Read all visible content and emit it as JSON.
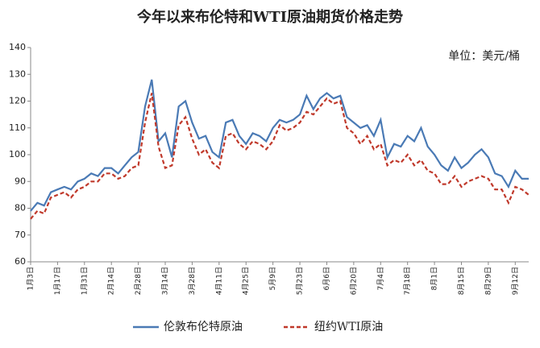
{
  "chart_data": {
    "type": "line",
    "title": "今年以来布伦特和WTI原油期货价格走势",
    "annotation": "单位：美元/桶",
    "categories": [
      "1月3日",
      null,
      null,
      null,
      "1月17日",
      null,
      null,
      null,
      "1月31日",
      null,
      null,
      null,
      "2月14日",
      null,
      null,
      null,
      "2月28日",
      null,
      null,
      null,
      "3月14日",
      null,
      null,
      null,
      "3月28日",
      null,
      null,
      null,
      "4月11日",
      null,
      null,
      null,
      "4月25日",
      null,
      null,
      null,
      "5月9日",
      null,
      null,
      null,
      "5月23日",
      null,
      null,
      null,
      "6月6日",
      null,
      null,
      null,
      "6月20日",
      null,
      null,
      null,
      "7月4日",
      null,
      null,
      null,
      "7月18日",
      null,
      null,
      null,
      "8月1日",
      null,
      null,
      null,
      "8月15日",
      null,
      null,
      null,
      "8月29日",
      null,
      null,
      null,
      "9月12日",
      null,
      null
    ],
    "series": [
      {
        "name": "伦敦布伦特原油",
        "color": "#4a7ab5",
        "dash": false,
        "values": [
          79,
          82,
          81,
          86,
          87,
          88,
          87,
          90,
          91,
          93,
          92,
          95,
          95,
          93,
          96,
          99,
          101,
          118,
          128,
          105,
          108,
          99,
          118,
          120,
          112,
          106,
          107,
          101,
          99,
          112,
          113,
          107,
          104,
          108,
          107,
          105,
          110,
          113,
          112,
          113,
          115,
          122,
          117,
          121,
          123,
          121,
          122,
          114,
          112,
          110,
          111,
          107,
          113,
          99,
          104,
          103,
          107,
          105,
          110,
          103,
          100,
          96,
          94,
          99,
          95,
          97,
          100,
          102,
          99,
          93,
          92,
          88,
          94,
          91,
          91
        ]
      },
      {
        "name": "纽约WTI原油",
        "color": "#c0392b",
        "dash": true,
        "values": [
          76,
          79,
          78,
          84,
          85,
          86,
          84,
          87,
          88,
          90,
          90,
          93,
          93,
          91,
          92,
          95,
          96,
          112,
          123,
          103,
          95,
          96,
          111,
          114,
          106,
          100,
          102,
          97,
          95,
          107,
          108,
          104,
          102,
          105,
          104,
          102,
          105,
          111,
          109,
          110,
          112,
          116,
          115,
          118,
          121,
          119,
          120,
          110,
          108,
          104,
          107,
          102,
          104,
          96,
          98,
          97,
          100,
          96,
          98,
          94,
          93,
          89,
          89,
          92,
          88,
          90,
          91,
          92,
          91,
          87,
          87,
          82,
          88,
          87,
          85
        ]
      }
    ],
    "ylim": [
      60,
      140
    ],
    "yticks": [
      60,
      70,
      80,
      90,
      100,
      110,
      120,
      130,
      140
    ],
    "grid": false
  }
}
